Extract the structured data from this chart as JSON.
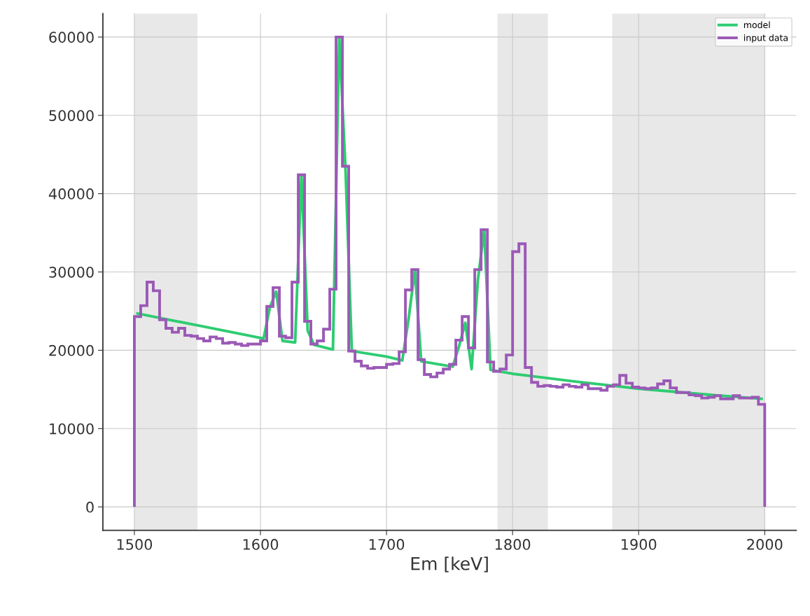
{
  "chart_data": {
    "type": "line",
    "xlabel": "Em [keV]",
    "xlim": [
      1475,
      2025
    ],
    "xticks": [
      1500,
      1600,
      1700,
      1800,
      1900,
      2000
    ],
    "ylim": [
      -3000,
      63000
    ],
    "yticks": [
      0,
      10000,
      20000,
      30000,
      40000,
      50000,
      60000
    ],
    "grid": true,
    "legend": "top right",
    "bands": [
      {
        "axis": "x",
        "from": 1500,
        "to": 1550,
        "color": "#e8e8e8"
      },
      {
        "axis": "x",
        "from": 1788,
        "to": 1828,
        "color": "#e8e8e8"
      },
      {
        "axis": "x",
        "from": 1879,
        "to": 2000,
        "color": "#e8e8e8"
      }
    ],
    "series": [
      {
        "name": "model",
        "color": "#2ecc71",
        "x": [
          1502.5,
          1552.5,
          1602.5,
          1607.5,
          1612.5,
          1617.5,
          1627.5,
          1632.5,
          1637.5,
          1642.5,
          1657.5,
          1662.5,
          1667.5,
          1672.5,
          1700,
          1712.5,
          1717.5,
          1722.5,
          1727.5,
          1752.5,
          1757.5,
          1762.5,
          1767.5,
          1772.5,
          1777.5,
          1782.5,
          1800,
          1850,
          1900,
          1950,
          1997.5
        ],
        "values": [
          24700,
          23100,
          21500,
          25500,
          27500,
          21200,
          21000,
          42400,
          22500,
          20700,
          20100,
          60000,
          43000,
          19900,
          19200,
          18700,
          24000,
          30300,
          18600,
          17900,
          20500,
          23500,
          17600,
          29000,
          35400,
          17500,
          17000,
          16000,
          15100,
          14400,
          13800
        ]
      },
      {
        "name": "input data",
        "type": "histogram",
        "color": "#9b59b6",
        "bins": [
          1500,
          1505,
          1510,
          1515,
          1520,
          1525,
          1530,
          1535,
          1540,
          1545,
          1550,
          1555,
          1560,
          1565,
          1570,
          1575,
          1580,
          1585,
          1590,
          1595,
          1600,
          1605,
          1610,
          1615,
          1620,
          1625,
          1630,
          1635,
          1640,
          1645,
          1650,
          1655,
          1660,
          1665,
          1670,
          1675,
          1680,
          1685,
          1690,
          1695,
          1700,
          1705,
          1710,
          1715,
          1720,
          1725,
          1730,
          1735,
          1740,
          1745,
          1750,
          1755,
          1760,
          1765,
          1770,
          1775,
          1780,
          1785,
          1790,
          1795,
          1800,
          1805,
          1810,
          1815,
          1820,
          1825,
          1830,
          1835,
          1840,
          1845,
          1850,
          1855,
          1860,
          1865,
          1870,
          1875,
          1880,
          1885,
          1890,
          1895,
          1900,
          1905,
          1910,
          1915,
          1920,
          1925,
          1930,
          1935,
          1940,
          1945,
          1950,
          1955,
          1960,
          1965,
          1970,
          1975,
          1980,
          1985,
          1990,
          1995,
          2000
        ],
        "values": [
          24300,
          25700,
          28700,
          27600,
          23900,
          22800,
          22300,
          22800,
          21900,
          21800,
          21500,
          21200,
          21700,
          21500,
          20900,
          21000,
          20800,
          20600,
          20800,
          20800,
          21200,
          25600,
          28000,
          21800,
          21600,
          28700,
          42400,
          23700,
          20800,
          21200,
          22700,
          27800,
          60000,
          43500,
          19900,
          18600,
          18000,
          17700,
          17800,
          17800,
          18200,
          18300,
          19800,
          27700,
          30300,
          18800,
          16900,
          16600,
          17100,
          17600,
          18200,
          21300,
          24300,
          20300,
          30300,
          35400,
          18500,
          17300,
          17600,
          19400,
          32600,
          33600,
          17800,
          15900,
          15400,
          15500,
          15400,
          15300,
          15600,
          15400,
          15300,
          15600,
          15100,
          15100,
          14900,
          15400,
          15600,
          16800,
          15800,
          15300,
          15200,
          15100,
          15200,
          15700,
          16100,
          15200,
          14600,
          14600,
          14300,
          14200,
          13900,
          14000,
          14200,
          13800,
          13800,
          14200,
          13900,
          13900,
          14000,
          13100
        ]
      }
    ]
  }
}
